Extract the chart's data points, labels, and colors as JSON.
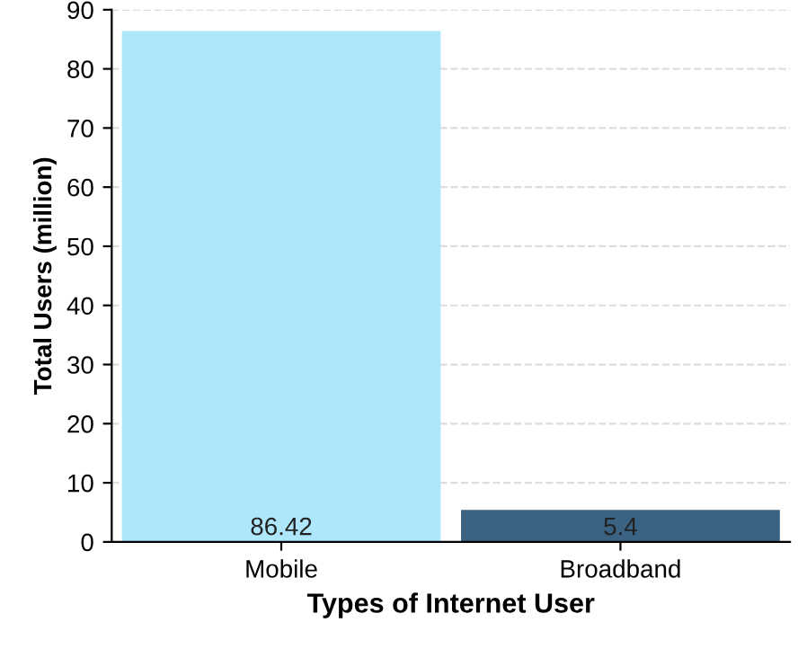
{
  "chart_data": {
    "type": "bar",
    "xlabel": "Types of Internet User",
    "ylabel": "Total Users (million)",
    "categories": [
      "Mobile",
      "Broadband"
    ],
    "values": [
      86.42,
      5.4
    ],
    "colors": [
      "#aee6fb",
      "#3a6282"
    ],
    "ylim": [
      0,
      90
    ],
    "yticks": [
      0,
      10,
      20,
      30,
      40,
      50,
      60,
      70,
      80,
      90
    ],
    "grid": "y",
    "data_labels": true
  }
}
